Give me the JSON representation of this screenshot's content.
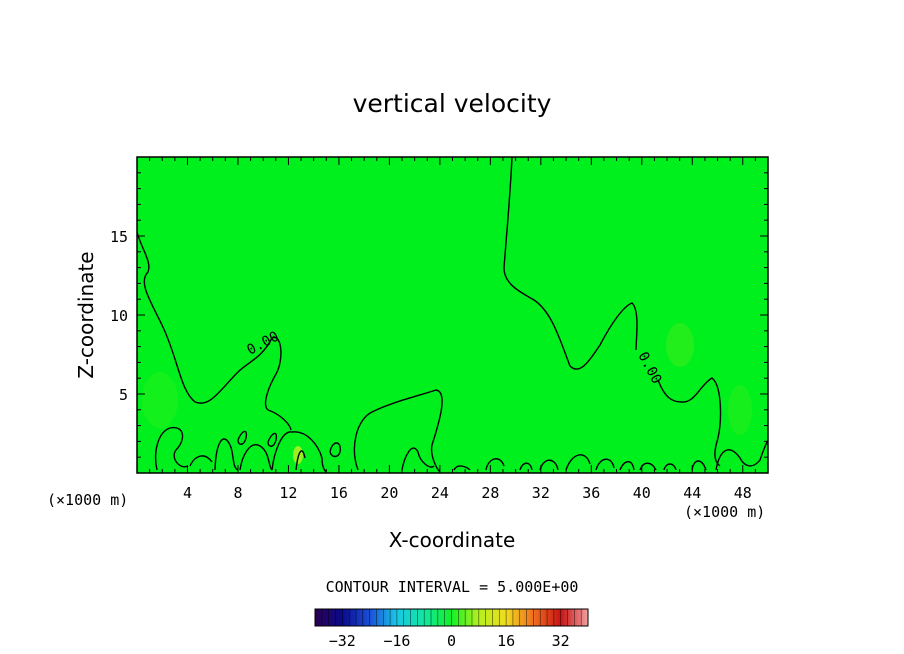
{
  "chart_data": {
    "type": "contour",
    "title": "vertical velocity",
    "xlabel": "X-coordinate",
    "ylabel": "Z-coordinate",
    "x_unit": "(×1000 m)",
    "z_unit": "(×1000 m)",
    "xlim": [
      0,
      50
    ],
    "ylim": [
      0,
      20
    ],
    "x_ticks": [
      4,
      8,
      12,
      16,
      20,
      24,
      28,
      32,
      36,
      40,
      44,
      48
    ],
    "y_ticks": [
      5,
      10,
      15
    ],
    "contour_interval_text": "CONTOUR INTERVAL = 5.000E+00",
    "contour_label": "0.00",
    "colorbar": {
      "min": -40,
      "max": 40,
      "ticks": [
        -32,
        -16,
        0,
        16,
        32
      ],
      "colors": [
        "#2a0050",
        "#0a0a8c",
        "#1a4fd8",
        "#19c8e6",
        "#12e6a0",
        "#14f028",
        "#b4f01e",
        "#f0dc1e",
        "#f06e1e",
        "#c81414",
        "#f0a0a0"
      ]
    },
    "field_color": "#00f01e"
  }
}
